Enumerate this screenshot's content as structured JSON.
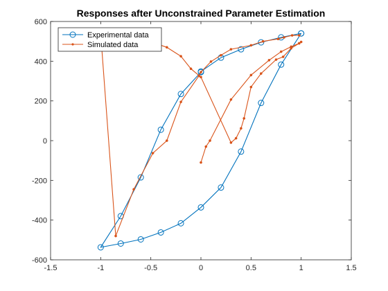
{
  "chart_data": {
    "type": "line",
    "title": "Responses after Unconstrained Parameter Estimation",
    "xlabel": "",
    "ylabel": "",
    "xlim": [
      -1.5,
      1.5
    ],
    "ylim": [
      -600,
      600
    ],
    "xticks": [
      -1.5,
      -1,
      -0.5,
      0,
      0.5,
      1,
      1.5
    ],
    "yticks": [
      -600,
      -400,
      -200,
      0,
      200,
      400,
      600
    ],
    "xtick_labels": [
      "-1.5",
      "-1",
      "-0.5",
      "0",
      "0.5",
      "1",
      "1.5"
    ],
    "ytick_labels": [
      "-600",
      "-400",
      "-200",
      "0",
      "200",
      "400",
      "600"
    ],
    "grid": false,
    "legend_position": "top-left",
    "series": [
      {
        "name": "Experimental data",
        "color": "#0072BD",
        "marker": "circle",
        "x": [
          1.0,
          0.8,
          0.6,
          0.4,
          0.2,
          0.0,
          0.0,
          -0.2,
          -0.4,
          -0.6,
          -0.8,
          -1.0,
          -0.8,
          -0.6,
          -0.4,
          -0.2,
          0.0,
          0.2,
          0.4,
          0.6,
          0.8,
          1.0
        ],
        "y": [
          540,
          520,
          495,
          460,
          418,
          348,
          345,
          235,
          55,
          -185,
          -380,
          -537,
          -518,
          -497,
          -462,
          -416,
          -336,
          -236,
          -55,
          190,
          383,
          540
        ]
      },
      {
        "name": "Simulated data",
        "color": "#D95319",
        "marker": "dot",
        "x": [
          0.0,
          0.05,
          0.09,
          0.3,
          0.5,
          0.68,
          0.8,
          0.9,
          0.98,
          1.0,
          0.98,
          0.9,
          0.82,
          0.75,
          0.6,
          0.5,
          0.43,
          0.4,
          0.35,
          0.3,
          0.0,
          -0.1,
          -0.2,
          -0.34,
          -0.55,
          -0.8,
          -1.0,
          -0.85,
          -0.67,
          -0.48,
          -0.34,
          -0.2,
          -0.02,
          0.0,
          0.1,
          0.2,
          0.3,
          0.5,
          0.62,
          0.77,
          0.83,
          0.91,
          0.98
        ],
        "y": [
          -110,
          -30,
          0,
          207,
          330,
          405,
          448,
          473,
          490,
          497,
          490,
          465,
          422,
          408,
          338,
          270,
          112,
          62,
          12,
          -10,
          320,
          362,
          425,
          470,
          507,
          528,
          540,
          -480,
          -245,
          -63,
          0,
          195,
          326,
          345,
          398,
          430,
          460,
          480,
          500,
          512,
          520,
          530,
          530
        ]
      }
    ]
  }
}
